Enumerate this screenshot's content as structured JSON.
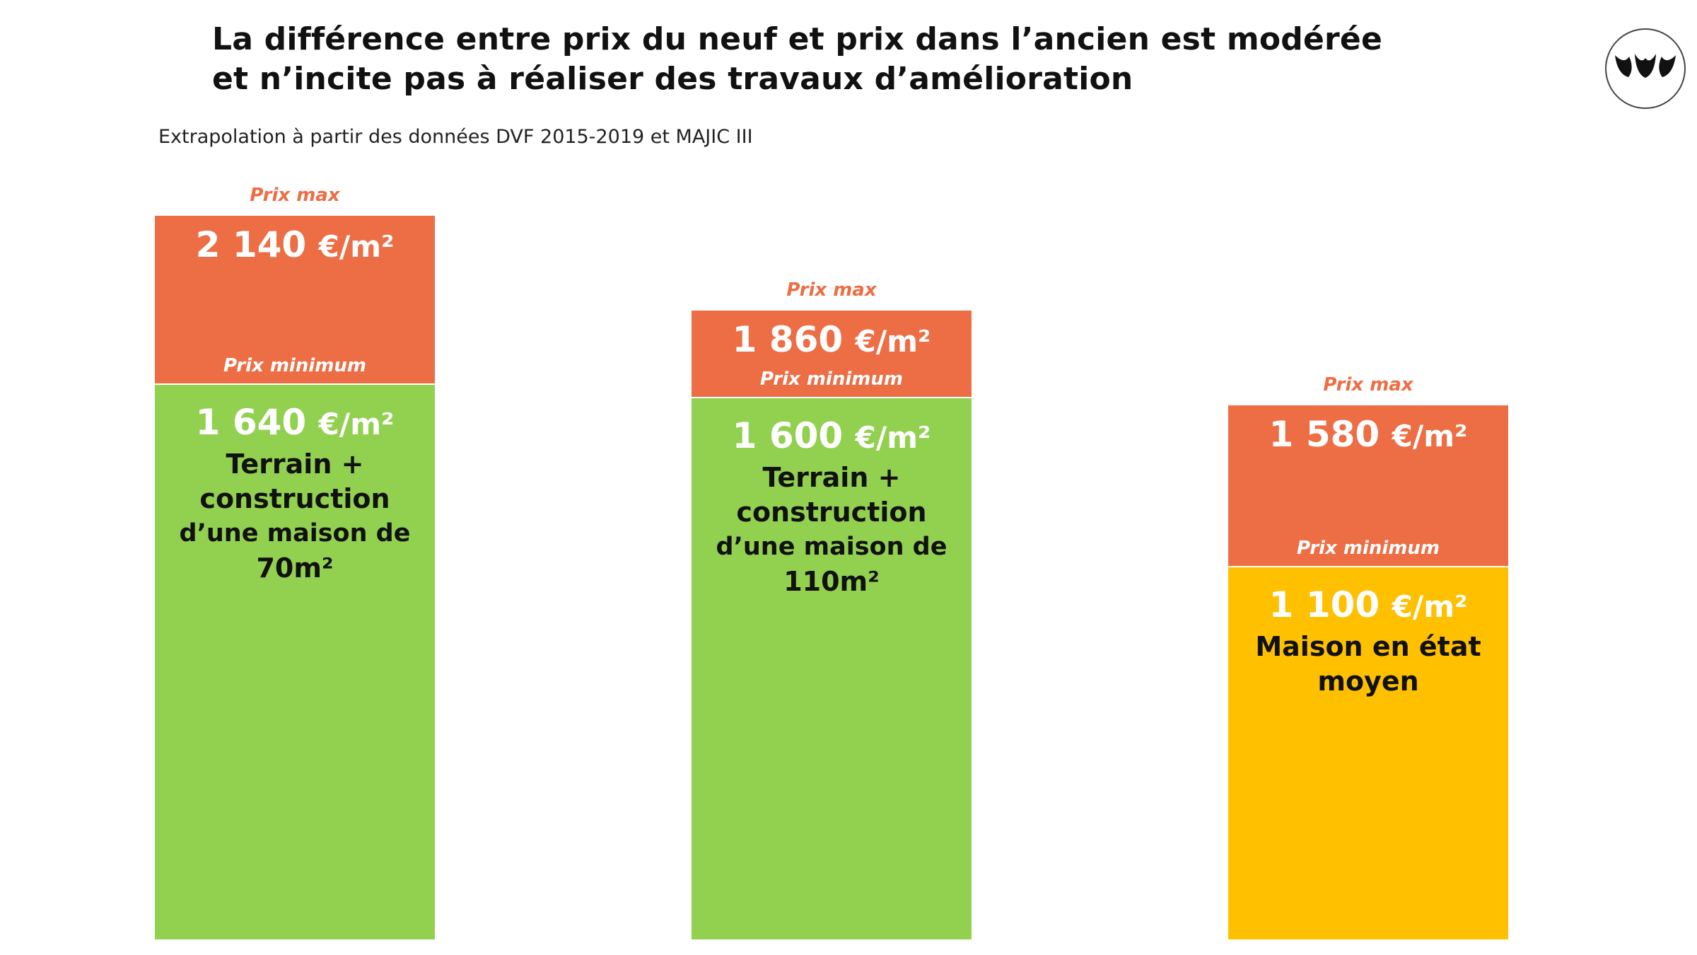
{
  "title_line1": "La différence entre prix du neuf et prix dans l’ancien est modérée",
  "title_line2": "et n’incite pas à réaliser des travaux d’amélioration",
  "subtitle": "Extrapolation à partir des données DVF 2015-2019 et MAJIC III",
  "colors": {
    "max_segment": "#ed6e45",
    "min_segment_new": "#92d050",
    "min_segment_old": "#ffc000"
  },
  "chart_data": {
    "type": "bar",
    "stacked": true,
    "unit": "€/m²",
    "ylim": [
      0,
      2140
    ],
    "max_label": "Prix max",
    "min_label": "Prix minimum",
    "bars": [
      {
        "max_value": 2140,
        "min_value": 1640,
        "max_text": "2 140",
        "min_text": "1 640",
        "desc_lines": [
          "Terrain +",
          "construction",
          "d’une maison de",
          "70m²"
        ],
        "min_color": "#92d050"
      },
      {
        "max_value": 1860,
        "min_value": 1600,
        "max_text": "1 860",
        "min_text": "1 600",
        "desc_lines": [
          "Terrain +",
          "construction",
          "d’une maison de",
          "110m²"
        ],
        "min_color": "#92d050"
      },
      {
        "max_value": 1580,
        "min_value": 1100,
        "max_text": "1 580",
        "min_text": "1 100",
        "desc_lines": [
          "Maison en état",
          "moyen"
        ],
        "min_color": "#ffc000"
      }
    ]
  }
}
